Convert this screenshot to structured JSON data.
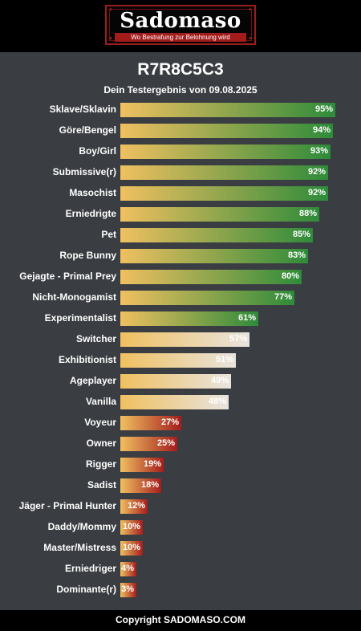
{
  "header": {
    "logo_text": "Sadomaso",
    "logo_tagline": "Wo Bestrafung zur Belohnung wird"
  },
  "title": "R7R8C5C3",
  "subtitle": "Dein Testergebnis von 09.08.2025",
  "colors": {
    "green": "#2e8b3a",
    "light": "#e8e4df",
    "red": "#a51d1d",
    "start": "#f0c060"
  },
  "results": [
    {
      "label": "Sklave/Sklavin",
      "value": 95,
      "pct": "95%"
    },
    {
      "label": "Göre/Bengel",
      "value": 94,
      "pct": "94%"
    },
    {
      "label": "Boy/Girl",
      "value": 93,
      "pct": "93%"
    },
    {
      "label": "Submissive(r)",
      "value": 92,
      "pct": "92%"
    },
    {
      "label": "Masochist",
      "value": 92,
      "pct": "92%"
    },
    {
      "label": "Erniedrigte",
      "value": 88,
      "pct": "88%"
    },
    {
      "label": "Pet",
      "value": 85,
      "pct": "85%"
    },
    {
      "label": "Rope Bunny",
      "value": 83,
      "pct": "83%"
    },
    {
      "label": "Gejagte - Primal Prey",
      "value": 80,
      "pct": "80%"
    },
    {
      "label": "Nicht-Monogamist",
      "value": 77,
      "pct": "77%"
    },
    {
      "label": "Experimentalist",
      "value": 61,
      "pct": "61%"
    },
    {
      "label": "Switcher",
      "value": 57,
      "pct": "57%"
    },
    {
      "label": "Exhibitionist",
      "value": 51,
      "pct": "51%"
    },
    {
      "label": "Ageplayer",
      "value": 49,
      "pct": "49%"
    },
    {
      "label": "Vanilla",
      "value": 48,
      "pct": "48%"
    },
    {
      "label": "Voyeur",
      "value": 27,
      "pct": "27%"
    },
    {
      "label": "Owner",
      "value": 25,
      "pct": "25%"
    },
    {
      "label": "Rigger",
      "value": 19,
      "pct": "19%"
    },
    {
      "label": "Sadist",
      "value": 18,
      "pct": "18%"
    },
    {
      "label": "Jäger - Primal Hunter",
      "value": 12,
      "pct": "12%"
    },
    {
      "label": "Daddy/Mommy",
      "value": 10,
      "pct": "10%"
    },
    {
      "label": "Master/Mistress",
      "value": 10,
      "pct": "10%"
    },
    {
      "label": "Erniedriger",
      "value": 4,
      "pct": "4%"
    },
    {
      "label": "Dominante(r)",
      "value": 3,
      "pct": "3%"
    }
  ],
  "footer": {
    "copyright": "Copyright SADOMASO.COM"
  }
}
